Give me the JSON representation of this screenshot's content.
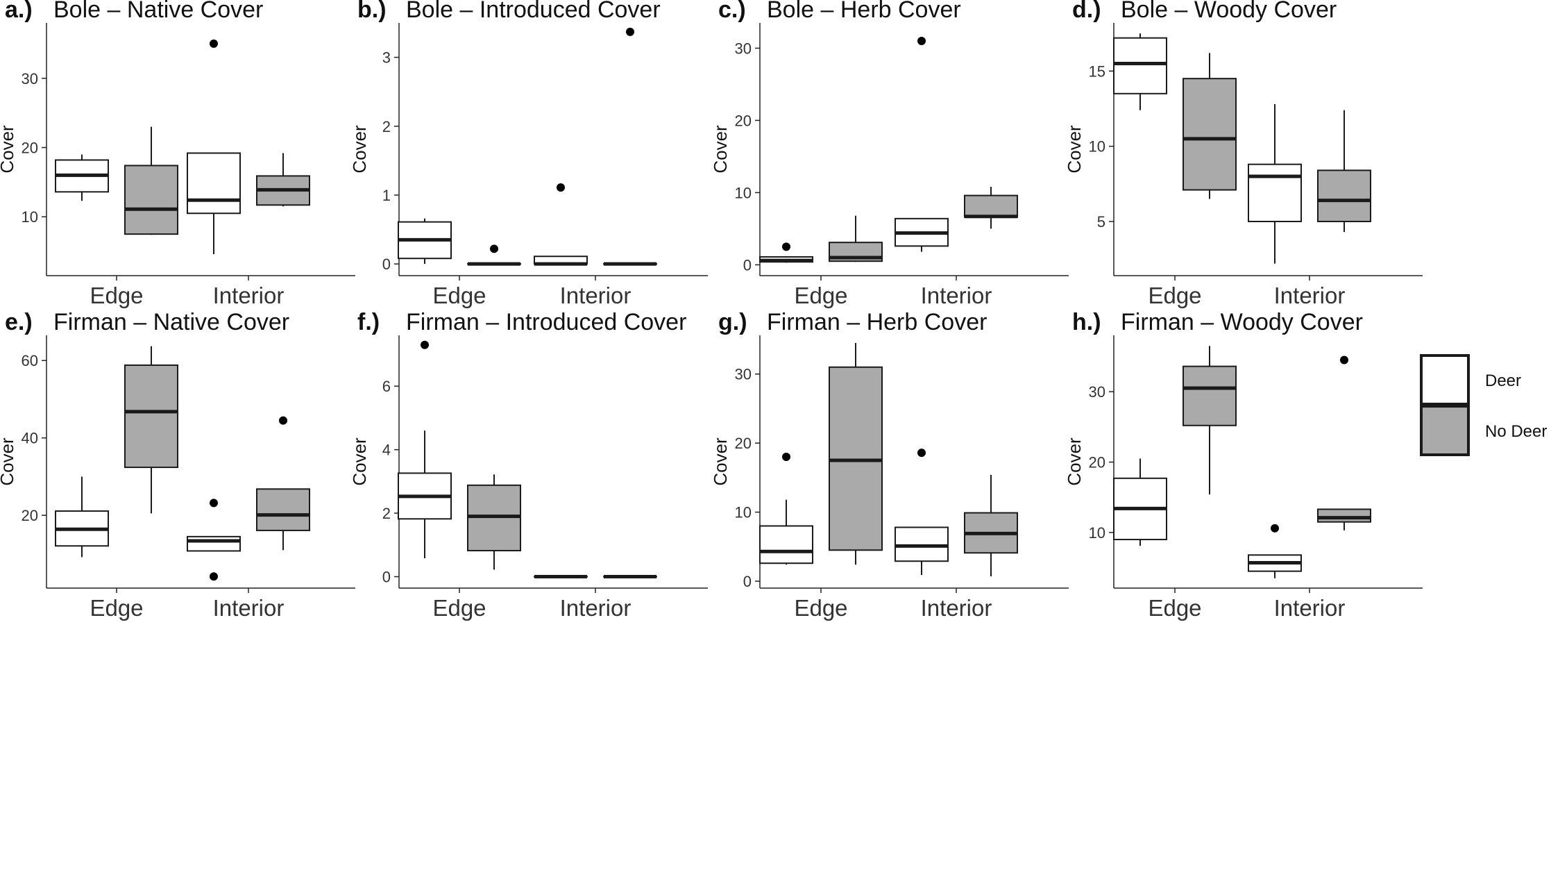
{
  "legend": {
    "entries": [
      {
        "label": "Deer",
        "fill": "#ffffff"
      },
      {
        "label": "No Deer",
        "fill": "#aaaaaa"
      }
    ]
  },
  "colors": {
    "deer": "#ffffff",
    "no_deer": "#aaaaaa",
    "stroke": "#1a1a1a",
    "axis": "#222222"
  },
  "chart_data": [
    {
      "type": "box",
      "tag": "a.)",
      "title": "Bole – Native Cover",
      "ylabel": "Cover",
      "ylim": [
        1.5,
        38
      ],
      "yticks": [
        10,
        20,
        30
      ],
      "categories": [
        "Edge",
        "Interior"
      ],
      "series": [
        {
          "name": "Deer",
          "boxes": [
            {
              "category": "Edge",
              "min": 12.3,
              "q1": 13.6,
              "median": 16.0,
              "q3": 18.2,
              "max": 19.0,
              "outliers": []
            },
            {
              "category": "Interior",
              "min": 4.6,
              "q1": 10.5,
              "median": 12.4,
              "q3": 19.2,
              "max": 19.2,
              "outliers": [
                35.0
              ]
            }
          ]
        },
        {
          "name": "No Deer",
          "boxes": [
            {
              "category": "Edge",
              "min": 7.4,
              "q1": 7.5,
              "median": 11.1,
              "q3": 17.4,
              "max": 23.0,
              "outliers": []
            },
            {
              "category": "Interior",
              "min": 11.5,
              "q1": 11.7,
              "median": 13.9,
              "q3": 15.9,
              "max": 19.2,
              "outliers": []
            }
          ]
        }
      ]
    },
    {
      "type": "box",
      "tag": "b.)",
      "title": "Bole – Introduced Cover",
      "ylabel": "Cover",
      "ylim": [
        -0.17,
        3.5
      ],
      "yticks": [
        0,
        1,
        2,
        3
      ],
      "categories": [
        "Edge",
        "Interior"
      ],
      "series": [
        {
          "name": "Deer",
          "boxes": [
            {
              "category": "Edge",
              "min": 0.0,
              "q1": 0.08,
              "median": 0.35,
              "q3": 0.61,
              "max": 0.66,
              "outliers": []
            },
            {
              "category": "Interior",
              "min": 0.0,
              "q1": 0.0,
              "median": 0.0,
              "q3": 0.11,
              "max": 0.11,
              "outliers": [
                1.11
              ]
            }
          ]
        },
        {
          "name": "No Deer",
          "boxes": [
            {
              "category": "Edge",
              "min": 0.0,
              "q1": 0.0,
              "median": 0.0,
              "q3": 0.0,
              "max": 0.0,
              "outliers": [
                0.22
              ]
            },
            {
              "category": "Interior",
              "min": 0.0,
              "q1": 0.0,
              "median": 0.0,
              "q3": 0.0,
              "max": 0.0,
              "outliers": [
                3.37
              ]
            }
          ]
        }
      ]
    },
    {
      "type": "box",
      "tag": "c.)",
      "title": "Bole – Herb Cover",
      "ylabel": "Cover",
      "ylim": [
        -1.5,
        33.5
      ],
      "yticks": [
        0,
        10,
        20,
        30
      ],
      "categories": [
        "Edge",
        "Interior"
      ],
      "series": [
        {
          "name": "Deer",
          "boxes": [
            {
              "category": "Edge",
              "min": 0.3,
              "q1": 0.4,
              "median": 0.6,
              "q3": 1.1,
              "max": 1.2,
              "outliers": [
                2.5
              ]
            },
            {
              "category": "Interior",
              "min": 1.8,
              "q1": 2.6,
              "median": 4.4,
              "q3": 6.4,
              "max": 6.4,
              "outliers": [
                31.0
              ]
            }
          ]
        },
        {
          "name": "No Deer",
          "boxes": [
            {
              "category": "Edge",
              "min": 0.4,
              "q1": 0.5,
              "median": 1.0,
              "q3": 3.1,
              "max": 6.8,
              "outliers": []
            },
            {
              "category": "Interior",
              "min": 5.0,
              "q1": 6.6,
              "median": 6.7,
              "q3": 9.6,
              "max": 10.8,
              "outliers": []
            }
          ]
        }
      ]
    },
    {
      "type": "box",
      "tag": "d.)",
      "title": "Bole – Woody Cover",
      "ylabel": "Cover",
      "ylim": [
        1.4,
        18.2
      ],
      "yticks": [
        5,
        10,
        15
      ],
      "categories": [
        "Edge",
        "Interior"
      ],
      "series": [
        {
          "name": "Deer",
          "boxes": [
            {
              "category": "Edge",
              "min": 12.4,
              "q1": 13.5,
              "median": 15.5,
              "q3": 17.2,
              "max": 17.5,
              "outliers": []
            },
            {
              "category": "Interior",
              "min": 2.2,
              "q1": 5.0,
              "median": 8.0,
              "q3": 8.8,
              "max": 12.8,
              "outliers": []
            }
          ]
        },
        {
          "name": "No Deer",
          "boxes": [
            {
              "category": "Edge",
              "min": 6.5,
              "q1": 7.1,
              "median": 10.5,
              "q3": 14.5,
              "max": 16.2,
              "outliers": []
            },
            {
              "category": "Interior",
              "min": 4.3,
              "q1": 5.0,
              "median": 6.4,
              "q3": 8.4,
              "max": 12.4,
              "outliers": []
            }
          ]
        }
      ]
    },
    {
      "type": "box",
      "tag": "e.)",
      "title": "Firman – Native Cover",
      "ylabel": "Cover",
      "ylim": [
        1.2,
        66.5
      ],
      "yticks": [
        20,
        40,
        60
      ],
      "categories": [
        "Edge",
        "Interior"
      ],
      "series": [
        {
          "name": "Deer",
          "boxes": [
            {
              "category": "Edge",
              "min": 9.2,
              "q1": 12.1,
              "median": 16.4,
              "q3": 21.1,
              "max": 30.0,
              "outliers": []
            },
            {
              "category": "Interior",
              "min": 10.8,
              "q1": 10.8,
              "median": 13.4,
              "q3": 14.5,
              "max": 14.5,
              "outliers": [
                23.2,
                4.2
              ]
            }
          ]
        },
        {
          "name": "No Deer",
          "boxes": [
            {
              "category": "Edge",
              "min": 20.5,
              "q1": 32.4,
              "median": 46.8,
              "q3": 58.8,
              "max": 63.7,
              "outliers": []
            },
            {
              "category": "Interior",
              "min": 11.0,
              "q1": 16.1,
              "median": 20.1,
              "q3": 26.8,
              "max": 26.8,
              "outliers": [
                44.5
              ]
            }
          ]
        }
      ]
    },
    {
      "type": "box",
      "tag": "f.)",
      "title": "Firman – Introduced Cover",
      "ylabel": "Cover",
      "ylim": [
        -0.36,
        7.6
      ],
      "yticks": [
        0,
        2,
        4,
        6
      ],
      "categories": [
        "Edge",
        "Interior"
      ],
      "series": [
        {
          "name": "Deer",
          "boxes": [
            {
              "category": "Edge",
              "min": 0.58,
              "q1": 1.82,
              "median": 2.53,
              "q3": 3.26,
              "max": 4.6,
              "outliers": [
                7.3
              ]
            },
            {
              "category": "Interior",
              "min": 0.0,
              "q1": 0.0,
              "median": 0.0,
              "q3": 0.0,
              "max": 0.0,
              "outliers": []
            }
          ]
        },
        {
          "name": "No Deer",
          "boxes": [
            {
              "category": "Edge",
              "min": 0.22,
              "q1": 0.82,
              "median": 1.9,
              "q3": 2.88,
              "max": 3.22,
              "outliers": []
            },
            {
              "category": "Interior",
              "min": 0.0,
              "q1": 0.0,
              "median": 0.0,
              "q3": 0.0,
              "max": 0.0,
              "outliers": []
            }
          ]
        }
      ]
    },
    {
      "type": "box",
      "tag": "g.)",
      "title": "Firman – Herb Cover",
      "ylabel": "Cover",
      "ylim": [
        -1.0,
        35.6
      ],
      "yticks": [
        0,
        10,
        20,
        30
      ],
      "categories": [
        "Edge",
        "Interior"
      ],
      "series": [
        {
          "name": "Deer",
          "boxes": [
            {
              "category": "Edge",
              "min": 2.4,
              "q1": 2.6,
              "median": 4.3,
              "q3": 8.0,
              "max": 11.8,
              "outliers": [
                18.0
              ]
            },
            {
              "category": "Interior",
              "min": 0.9,
              "q1": 2.9,
              "median": 5.1,
              "q3": 7.8,
              "max": 7.8,
              "outliers": [
                18.6
              ]
            }
          ]
        },
        {
          "name": "No Deer",
          "boxes": [
            {
              "category": "Edge",
              "min": 2.4,
              "q1": 4.5,
              "median": 17.5,
              "q3": 31.0,
              "max": 34.5,
              "outliers": []
            },
            {
              "category": "Interior",
              "min": 0.7,
              "q1": 4.1,
              "median": 6.9,
              "q3": 9.9,
              "max": 15.4,
              "outliers": []
            }
          ]
        }
      ]
    },
    {
      "type": "box",
      "tag": "h.)",
      "title": "Firman – Woody Cover",
      "ylabel": "Cover",
      "ylim": [
        2.1,
        38.0
      ],
      "yticks": [
        10,
        20,
        30
      ],
      "categories": [
        "Edge",
        "Interior"
      ],
      "series": [
        {
          "name": "Deer",
          "boxes": [
            {
              "category": "Edge",
              "min": 8.1,
              "q1": 9.0,
              "median": 13.4,
              "q3": 17.7,
              "max": 20.5,
              "outliers": []
            },
            {
              "category": "Interior",
              "min": 3.5,
              "q1": 4.5,
              "median": 5.7,
              "q3": 6.8,
              "max": 6.8,
              "outliers": [
                10.6
              ]
            }
          ]
        },
        {
          "name": "No Deer",
          "boxes": [
            {
              "category": "Edge",
              "min": 15.4,
              "q1": 25.2,
              "median": 30.5,
              "q3": 33.6,
              "max": 36.5,
              "outliers": []
            },
            {
              "category": "Interior",
              "min": 10.3,
              "q1": 11.5,
              "median": 12.1,
              "q3": 13.3,
              "max": 13.3,
              "outliers": [
                34.5
              ]
            }
          ]
        }
      ]
    }
  ]
}
